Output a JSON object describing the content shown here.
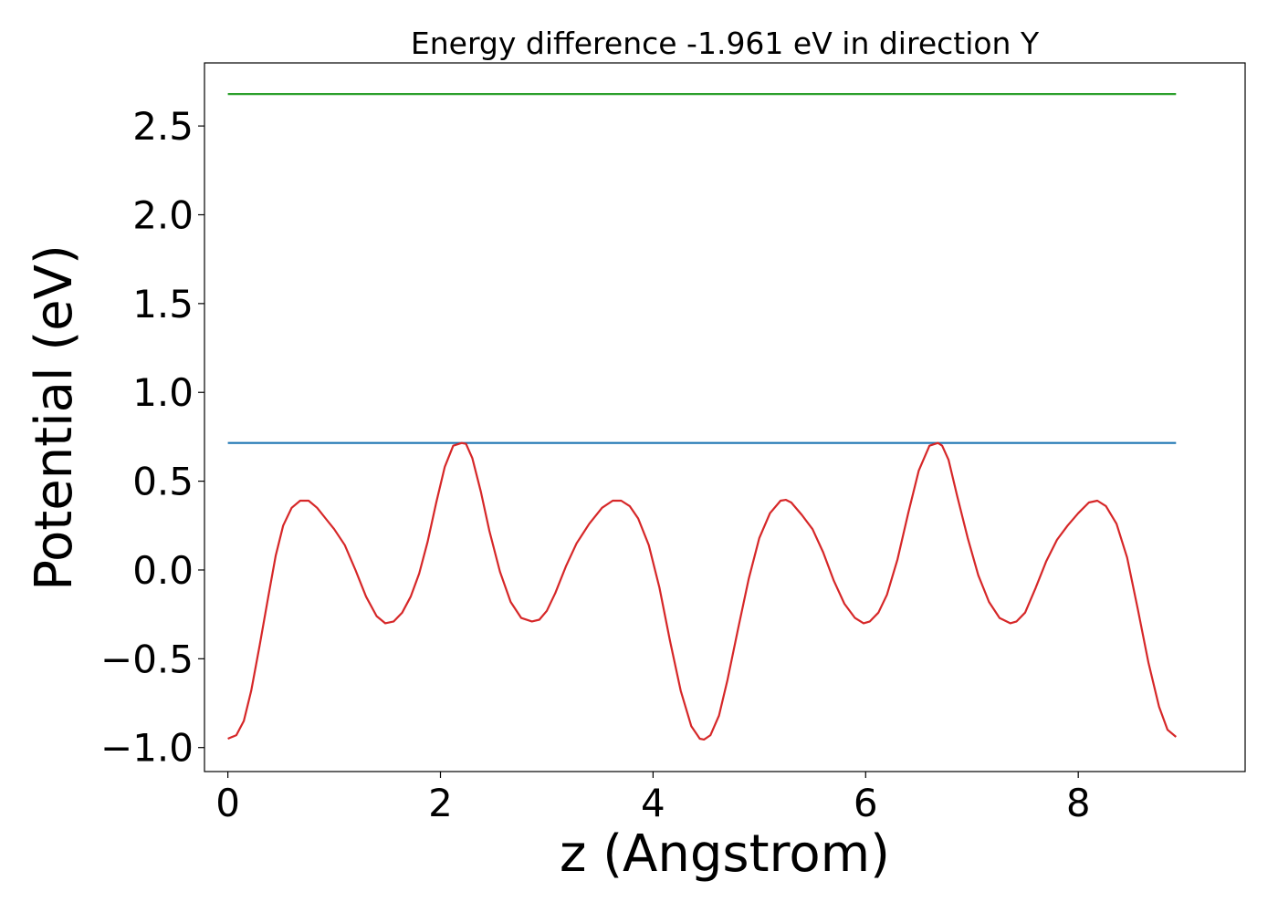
{
  "chart_data": {
    "type": "line",
    "title": "Energy difference -1.961 eV in direction Y",
    "xlabel": "z (Angstrom)",
    "ylabel": "Potential (eV)",
    "xlim": [
      -0.22,
      9.57
    ],
    "ylim": [
      -1.135,
      2.855
    ],
    "xticks": [
      0,
      2,
      4,
      6,
      8
    ],
    "xtick_labels": [
      "0",
      "2",
      "4",
      "6",
      "8"
    ],
    "yticks": [
      -1.0,
      -0.5,
      0.0,
      0.5,
      1.0,
      1.5,
      2.0,
      2.5
    ],
    "ytick_labels": [
      "−1.0",
      "−0.5",
      "0.0",
      "0.5",
      "1.0",
      "1.5",
      "2.0",
      "2.5"
    ],
    "grid": false,
    "legend": "none",
    "series": [
      {
        "color": "#2ca02c",
        "x": [
          0.0,
          8.92
        ],
        "y": [
          2.68,
          2.68
        ]
      },
      {
        "color": "#1f77b4",
        "x": [
          0.0,
          8.92
        ],
        "y": [
          0.715,
          0.715
        ]
      },
      {
        "color": "#d62728",
        "x": [
          0.0,
          0.08,
          0.15,
          0.22,
          0.3,
          0.38,
          0.45,
          0.52,
          0.6,
          0.68,
          0.76,
          0.84,
          0.92,
          1.0,
          1.1,
          1.2,
          1.3,
          1.4,
          1.48,
          1.56,
          1.64,
          1.72,
          1.8,
          1.88,
          1.96,
          2.04,
          2.12,
          2.2,
          2.24,
          2.3,
          2.38,
          2.46,
          2.56,
          2.66,
          2.76,
          2.86,
          2.93,
          3.0,
          3.08,
          3.18,
          3.28,
          3.4,
          3.52,
          3.62,
          3.7,
          3.78,
          3.86,
          3.96,
          4.06,
          4.16,
          4.26,
          4.36,
          4.44,
          4.48,
          4.54,
          4.62,
          4.7,
          4.8,
          4.9,
          5.0,
          5.1,
          5.2,
          5.25,
          5.3,
          5.4,
          5.5,
          5.6,
          5.7,
          5.8,
          5.9,
          5.98,
          6.04,
          6.12,
          6.2,
          6.3,
          6.4,
          6.5,
          6.6,
          6.68,
          6.72,
          6.78,
          6.86,
          6.96,
          7.06,
          7.16,
          7.26,
          7.36,
          7.42,
          7.5,
          7.6,
          7.7,
          7.8,
          7.9,
          8.0,
          8.1,
          8.18,
          8.26,
          8.36,
          8.46,
          8.56,
          8.66,
          8.76,
          8.84,
          8.92
        ],
        "y": [
          -0.95,
          -0.93,
          -0.85,
          -0.68,
          -0.42,
          -0.15,
          0.08,
          0.25,
          0.35,
          0.39,
          0.39,
          0.35,
          0.29,
          0.23,
          0.14,
          0.0,
          -0.15,
          -0.26,
          -0.3,
          -0.29,
          -0.24,
          -0.15,
          -0.02,
          0.16,
          0.38,
          0.58,
          0.7,
          0.715,
          0.71,
          0.63,
          0.44,
          0.22,
          -0.01,
          -0.18,
          -0.27,
          -0.29,
          -0.28,
          -0.23,
          -0.13,
          0.02,
          0.15,
          0.26,
          0.35,
          0.39,
          0.39,
          0.36,
          0.29,
          0.14,
          -0.1,
          -0.4,
          -0.68,
          -0.88,
          -0.95,
          -0.955,
          -0.93,
          -0.82,
          -0.62,
          -0.33,
          -0.05,
          0.18,
          0.32,
          0.39,
          0.395,
          0.38,
          0.31,
          0.23,
          0.1,
          -0.06,
          -0.19,
          -0.27,
          -0.3,
          -0.29,
          -0.24,
          -0.14,
          0.06,
          0.32,
          0.56,
          0.7,
          0.715,
          0.7,
          0.62,
          0.42,
          0.18,
          -0.03,
          -0.18,
          -0.27,
          -0.3,
          -0.29,
          -0.24,
          -0.1,
          0.05,
          0.17,
          0.25,
          0.32,
          0.38,
          0.39,
          0.36,
          0.26,
          0.07,
          -0.22,
          -0.52,
          -0.77,
          -0.9,
          -0.94
        ]
      }
    ]
  }
}
